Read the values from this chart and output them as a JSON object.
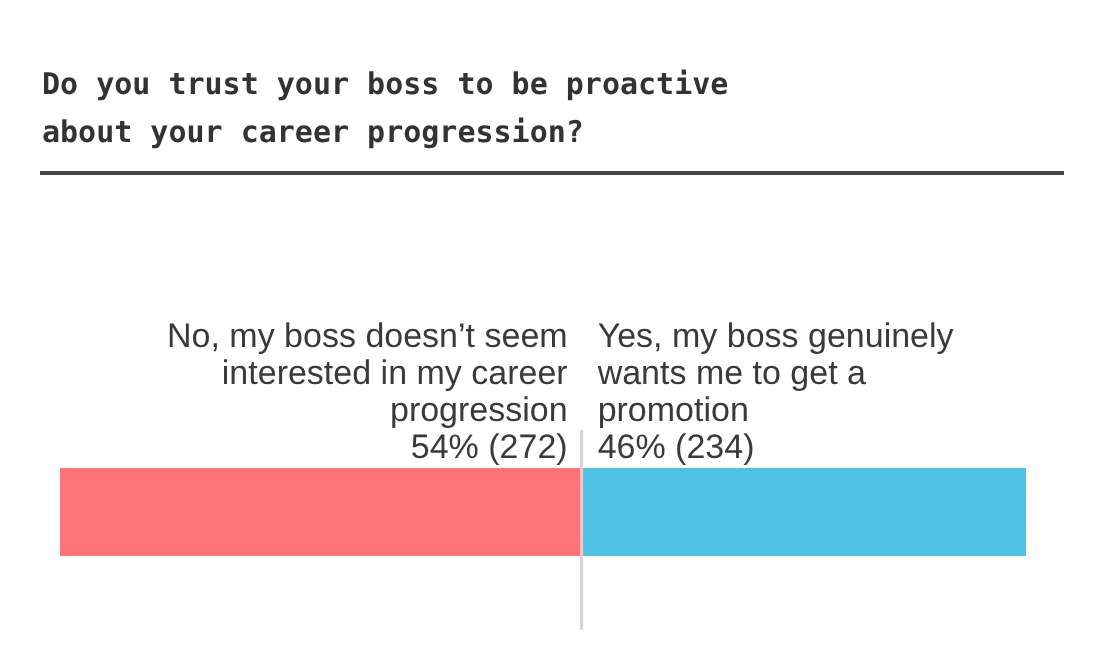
{
  "chart_data": {
    "type": "bar",
    "orientation": "horizontal",
    "stacked": true,
    "title": "Do you trust your boss to be proactive about your career progression?",
    "categories": [
      null
    ],
    "series": [
      {
        "name": "No, my boss doesn’t seem interested in my career progression",
        "color": "#ff7479",
        "values": [
          54
        ],
        "value_labels": [
          "54% (272)"
        ]
      },
      {
        "name": "Yes, my boss genuinely wants me to get a promotion",
        "color": "#4ec1e2",
        "values": [
          46
        ],
        "value_labels": [
          "46% (234)"
        ]
      }
    ],
    "ref_lines": [
      {
        "axis": "x",
        "value": 54,
        "color": "#d4d4d4"
      }
    ]
  }
}
